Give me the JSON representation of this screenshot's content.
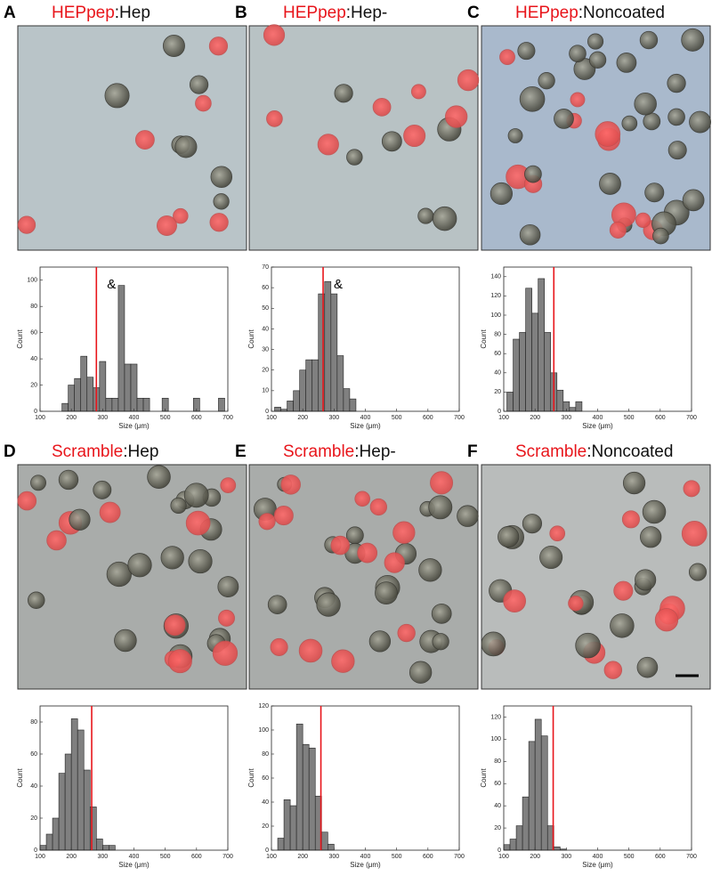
{
  "chart_data": [
    {
      "type": "histogram",
      "panel": "A",
      "title_highlight": "HEPpep",
      "title_rest": ":Hep",
      "xlabel": "Size (μm)",
      "ylabel": "Count",
      "bins": [
        170,
        190,
        210,
        230,
        250,
        270,
        290,
        310,
        330,
        350,
        370,
        390,
        410,
        430,
        450,
        470,
        490,
        510,
        530,
        550,
        570,
        590,
        610,
        630,
        650,
        670,
        690
      ],
      "counts": [
        6,
        20,
        25,
        42,
        26,
        18,
        38,
        10,
        10,
        96,
        36,
        36,
        10,
        10,
        0,
        0,
        10,
        0,
        0,
        0,
        0,
        10,
        0,
        0,
        0,
        10
      ],
      "xlim": [
        100,
        700
      ],
      "xticks": [
        100,
        200,
        300,
        400,
        500,
        600,
        700
      ],
      "ylim": [
        0,
        110
      ],
      "yticks": [
        0,
        20,
        40,
        60,
        80,
        100
      ],
      "mean_line": 280,
      "annotation": "&",
      "color": "#808080",
      "line_color": "#e8151b"
    },
    {
      "type": "histogram",
      "panel": "B",
      "title_highlight": "HEPpep",
      "title_rest": ":Hep-",
      "xlabel": "Size (μm)",
      "ylabel": "Count",
      "bins": [
        110,
        130,
        150,
        170,
        190,
        210,
        230,
        250,
        270,
        290,
        310,
        330,
        350,
        370
      ],
      "counts": [
        2,
        1,
        5,
        10,
        20,
        25,
        25,
        57,
        63,
        57,
        27,
        11,
        6
      ],
      "xlim": [
        100,
        700
      ],
      "xticks": [
        100,
        200,
        300,
        400,
        500,
        600,
        700
      ],
      "ylim": [
        0,
        70
      ],
      "yticks": [
        0,
        10,
        20,
        30,
        40,
        50,
        60,
        70
      ],
      "mean_line": 265,
      "annotation": "&",
      "color": "#808080",
      "line_color": "#e8151b"
    },
    {
      "type": "histogram",
      "panel": "C",
      "title_highlight": "HEPpep",
      "title_rest": ":Noncoated",
      "xlabel": "Size (μm)",
      "ylabel": "Count",
      "bins": [
        110,
        130,
        150,
        170,
        190,
        210,
        230,
        250,
        270,
        290,
        310,
        330,
        350
      ],
      "counts": [
        20,
        75,
        82,
        128,
        102,
        138,
        82,
        40,
        22,
        10,
        4,
        10
      ],
      "xlim": [
        100,
        700
      ],
      "xticks": [
        100,
        200,
        300,
        400,
        500,
        600,
        700
      ],
      "ylim": [
        0,
        150
      ],
      "yticks": [
        0,
        20,
        40,
        60,
        80,
        100,
        120,
        140
      ],
      "mean_line": 260,
      "color": "#808080",
      "line_color": "#e8151b"
    },
    {
      "type": "histogram",
      "panel": "D",
      "title_highlight": "Scramble",
      "title_rest": ":Hep",
      "xlabel": "Size (μm)",
      "ylabel": "Count",
      "bins": [
        100,
        120,
        140,
        160,
        180,
        200,
        220,
        240,
        260,
        280,
        300,
        320,
        340
      ],
      "counts": [
        3,
        10,
        20,
        48,
        60,
        82,
        75,
        50,
        27,
        7,
        3,
        3
      ],
      "xlim": [
        100,
        700
      ],
      "xticks": [
        100,
        200,
        300,
        400,
        500,
        600,
        700
      ],
      "ylim": [
        0,
        90
      ],
      "yticks": [
        0,
        20,
        40,
        60,
        80
      ],
      "mean_line": 265,
      "color": "#808080",
      "line_color": "#e8151b"
    },
    {
      "type": "histogram",
      "panel": "E",
      "title_highlight": "Scramble",
      "title_rest": ":Hep-",
      "xlabel": "Size (μm)",
      "ylabel": "Count",
      "bins": [
        120,
        140,
        160,
        180,
        200,
        220,
        240,
        260,
        280,
        300
      ],
      "counts": [
        10,
        42,
        37,
        105,
        88,
        85,
        45,
        15,
        5
      ],
      "xlim": [
        100,
        700
      ],
      "xticks": [
        100,
        200,
        300,
        400,
        500,
        600,
        700
      ],
      "ylim": [
        0,
        120
      ],
      "yticks": [
        0,
        20,
        40,
        60,
        80,
        100,
        120
      ],
      "mean_line": 258,
      "color": "#808080",
      "line_color": "#e8151b"
    },
    {
      "type": "histogram",
      "panel": "F",
      "title_highlight": "Scramble",
      "title_rest": ":Noncoated",
      "xlabel": "Size (μm)",
      "ylabel": "Count",
      "bins": [
        100,
        120,
        140,
        160,
        180,
        200,
        220,
        240,
        260,
        280,
        300
      ],
      "counts": [
        5,
        10,
        22,
        48,
        98,
        118,
        103,
        22,
        3,
        1
      ],
      "xlim": [
        100,
        700
      ],
      "xticks": [
        100,
        200,
        300,
        400,
        500,
        600,
        700
      ],
      "ylim": [
        0,
        130
      ],
      "yticks": [
        0,
        20,
        40,
        60,
        80,
        100,
        120
      ],
      "mean_line": 258,
      "color": "#808080",
      "line_color": "#e8151b"
    }
  ]
}
